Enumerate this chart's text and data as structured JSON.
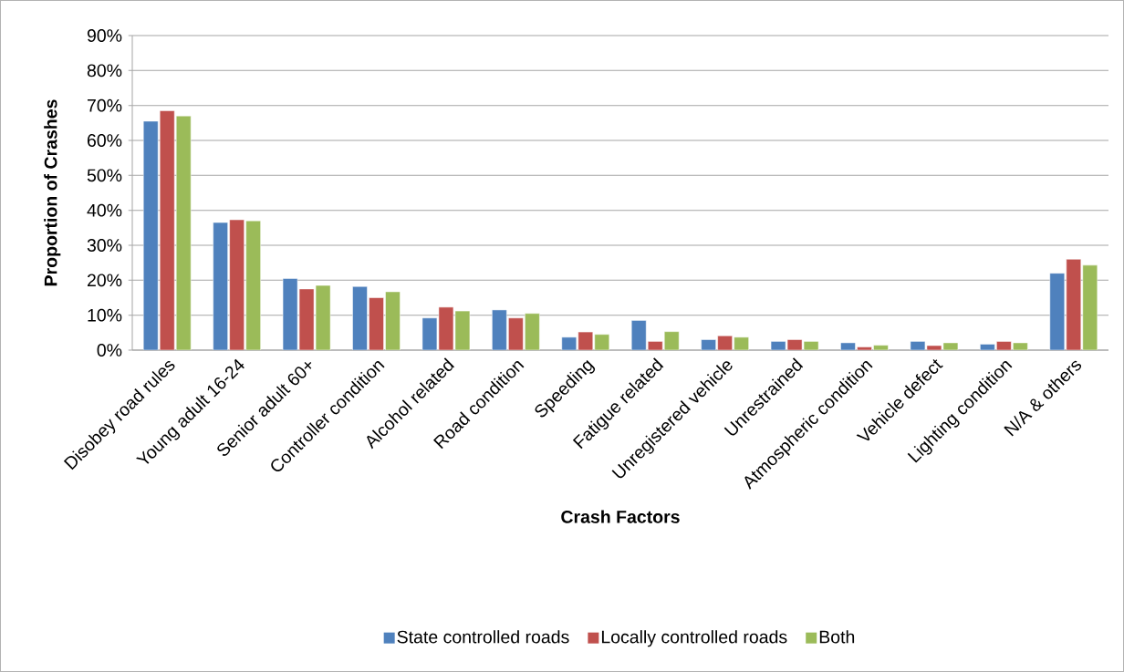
{
  "chart_data": {
    "type": "bar",
    "xlabel": "Crash Factors",
    "ylabel": "Proportion of Crashes",
    "categories": [
      "Disobey road rules",
      "Young adult 16-24",
      "Senior adult 60+",
      "Controller condition",
      "Alcohol related",
      "Road condition",
      "Speeding",
      "Fatigue related",
      "Unregistered vehicle",
      "Unrestrained",
      "Atmospheric condition",
      "Vehicle defect",
      "Lighting condition",
      "N/A & others"
    ],
    "series": [
      {
        "name": "State controlled roads",
        "color": "#4f81bd",
        "values": [
          65.5,
          36.5,
          20.5,
          18.2,
          9.2,
          11.5,
          3.7,
          8.5,
          3.0,
          2.5,
          2.1,
          2.5,
          1.7,
          22.0
        ]
      },
      {
        "name": "Locally controlled roads",
        "color": "#c0504d",
        "values": [
          68.5,
          37.3,
          17.5,
          15.0,
          12.3,
          9.2,
          5.2,
          2.5,
          4.1,
          3.0,
          0.9,
          1.3,
          2.5,
          26.0
        ]
      },
      {
        "name": "Both",
        "color": "#9bbb59",
        "values": [
          67.0,
          37.0,
          18.5,
          16.7,
          11.2,
          10.5,
          4.5,
          5.3,
          3.7,
          2.5,
          1.4,
          2.1,
          2.1,
          24.3
        ]
      }
    ],
    "ylim": [
      0,
      90
    ],
    "yticks": [
      {
        "value": 0,
        "label": "0%"
      },
      {
        "value": 10,
        "label": "10%"
      },
      {
        "value": 20,
        "label": "20%"
      },
      {
        "value": 30,
        "label": "30%"
      },
      {
        "value": 40,
        "label": "40%"
      },
      {
        "value": 50,
        "label": "50%"
      },
      {
        "value": 60,
        "label": "60%"
      },
      {
        "value": 70,
        "label": "70%"
      },
      {
        "value": 80,
        "label": "80%"
      },
      {
        "value": 90,
        "label": "90%"
      }
    ],
    "grid": "y",
    "legend": "bottom"
  }
}
